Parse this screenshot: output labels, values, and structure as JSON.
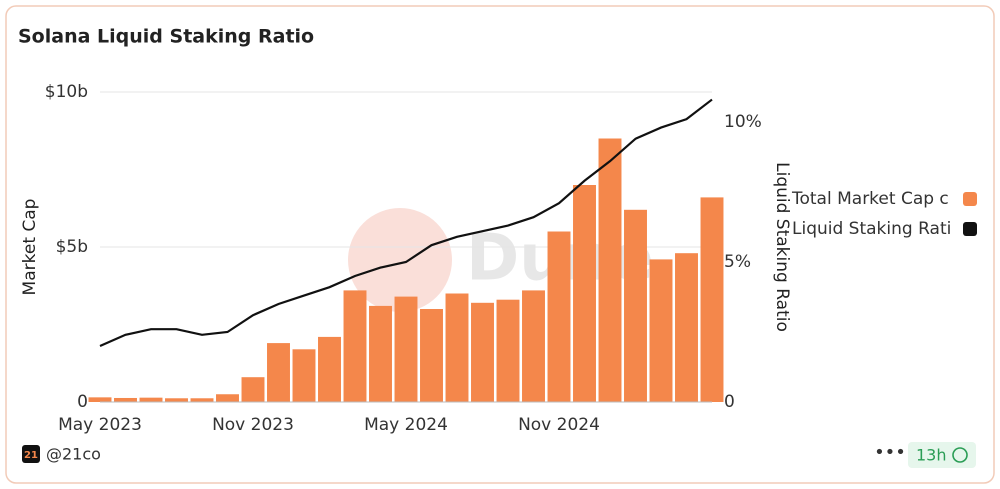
{
  "chart_data": {
    "type": "bar-line",
    "title": "Solana Liquid Staking Ratio",
    "y_label": "Market Cap",
    "y2_label": "Liquid Staking Ratio",
    "watermark": "Dune",
    "x": [
      "2023-05",
      "2023-06",
      "2023-07",
      "2023-08",
      "2023-09",
      "2023-10",
      "2023-11",
      "2023-12",
      "2024-01",
      "2024-02",
      "2024-03",
      "2024-04",
      "2024-05",
      "2024-06",
      "2024-07",
      "2024-08",
      "2024-09",
      "2024-10",
      "2024-11",
      "2024-12",
      "2025-01",
      "2025-02",
      "2025-03",
      "2025-04",
      "2025-05"
    ],
    "xticks": [
      {
        "value": "2023-05",
        "label": "May 2023"
      },
      {
        "value": "2023-11",
        "label": "Nov 2023"
      },
      {
        "value": "2024-05",
        "label": "May 2024"
      },
      {
        "value": "2024-11",
        "label": "Nov 2024"
      }
    ],
    "ylim": [
      0,
      10000000000
    ],
    "yticks": [
      {
        "value": 0,
        "label": "0"
      },
      {
        "value": 5000000000,
        "label": "$5b"
      },
      {
        "value": 10000000000,
        "label": "$10b"
      }
    ],
    "y2lim": [
      0,
      11.07
    ],
    "y2ticks": [
      {
        "value": 0,
        "label": "0"
      },
      {
        "value": 5,
        "label": "5%"
      },
      {
        "value": 10,
        "label": "10%"
      }
    ],
    "grid": true,
    "legend": "right",
    "series": [
      {
        "name": "Total Market Cap c",
        "kind": "bar",
        "color": "#f4874b",
        "values": [
          150000000,
          130000000,
          140000000,
          120000000,
          120000000,
          250000000,
          800000000,
          1900000000,
          1700000000,
          2100000000,
          3600000000,
          3100000000,
          3400000000,
          3000000000,
          3500000000,
          3200000000,
          3300000000,
          3600000000,
          5500000000,
          7000000000,
          8500000000,
          6200000000,
          4600000000,
          4800000000,
          6600000000
        ]
      },
      {
        "name": "Liquid Staking Rati",
        "kind": "line",
        "color": "#111111",
        "axis": "y2",
        "values": [
          2.0,
          2.4,
          2.6,
          2.6,
          2.4,
          2.5,
          3.1,
          3.5,
          3.8,
          4.1,
          4.5,
          4.8,
          5.0,
          5.6,
          5.9,
          6.1,
          6.3,
          6.6,
          7.1,
          7.9,
          8.6,
          9.4,
          9.8,
          10.1,
          10.8
        ]
      }
    ]
  },
  "footer": {
    "logo": "21",
    "handle": "@21co",
    "age": "13h"
  }
}
